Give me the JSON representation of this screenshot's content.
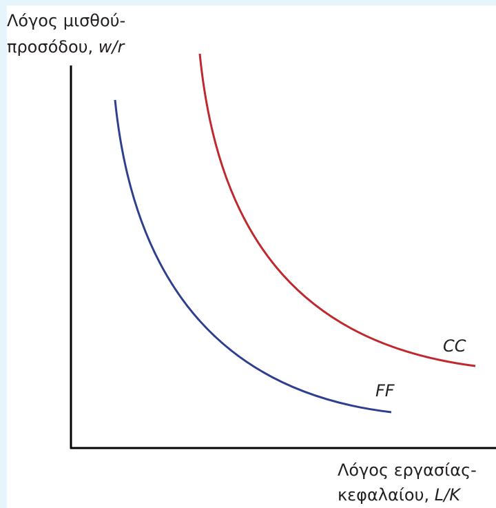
{
  "y_axis": {
    "label_line1": "Λόγος μισθού-",
    "label_line2": "προσόδου, ",
    "label_symbol": "w/r"
  },
  "x_axis": {
    "label_line1": "Λόγος εργασίας-",
    "label_line2": "κεφαλαίου, ",
    "label_symbol": "L/K"
  },
  "curves": [
    {
      "label": "CC"
    },
    {
      "label": "FF"
    }
  ]
}
